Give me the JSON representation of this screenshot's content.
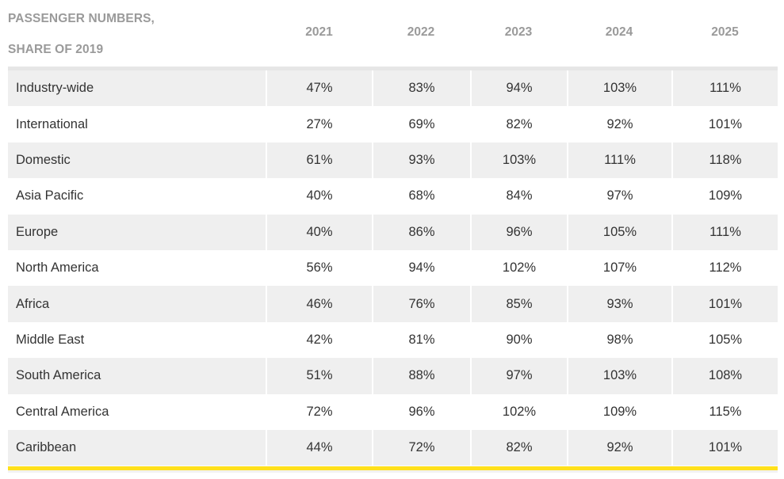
{
  "header": {
    "label_line1": "PASSENGER NUMBERS,",
    "label_line2": "SHARE OF 2019",
    "years": [
      "2021",
      "2022",
      "2023",
      "2024",
      "2025"
    ]
  },
  "rows": [
    {
      "region": "Industry-wide",
      "values": [
        "47%",
        "83%",
        "94%",
        "103%",
        "111%"
      ]
    },
    {
      "region": "International",
      "values": [
        "27%",
        "69%",
        "82%",
        "92%",
        "101%"
      ]
    },
    {
      "region": "Domestic",
      "values": [
        "61%",
        "93%",
        "103%",
        "111%",
        "118%"
      ]
    },
    {
      "region": "Asia Pacific",
      "values": [
        "40%",
        "68%",
        "84%",
        "97%",
        "109%"
      ]
    },
    {
      "region": "Europe",
      "values": [
        "40%",
        "86%",
        "96%",
        "105%",
        "111%"
      ]
    },
    {
      "region": "North America",
      "values": [
        "56%",
        "94%",
        "102%",
        "107%",
        "112%"
      ]
    },
    {
      "region": "Africa",
      "values": [
        "46%",
        "76%",
        "85%",
        "93%",
        "101%"
      ]
    },
    {
      "region": "Middle East",
      "values": [
        "42%",
        "81%",
        "90%",
        "98%",
        "105%"
      ]
    },
    {
      "region": "South America",
      "values": [
        "51%",
        "88%",
        "97%",
        "103%",
        "108%"
      ]
    },
    {
      "region": "Central America",
      "values": [
        "72%",
        "96%",
        "102%",
        "109%",
        "115%"
      ]
    },
    {
      "region": "Caribbean",
      "values": [
        "44%",
        "72%",
        "82%",
        "92%",
        "101%"
      ]
    }
  ],
  "colors": {
    "header_text": "#9a9a9a",
    "row_shade": "#efefef",
    "body_text": "#333333",
    "accent_rule": "#ffe01b"
  }
}
